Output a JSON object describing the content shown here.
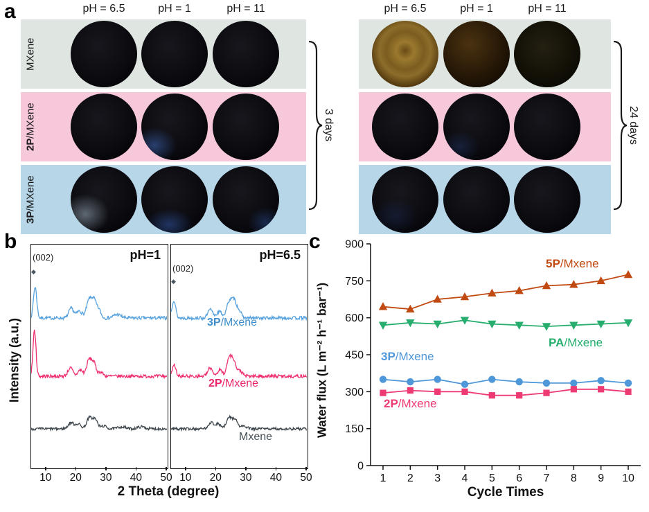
{
  "panels": {
    "a": "a",
    "b": "b",
    "c": "c"
  },
  "icons": {
    "diamond_marker": "◆"
  },
  "panel_a": {
    "column_headers": [
      "pH = 6.5",
      "pH = 1",
      "pH = 11"
    ],
    "rows": [
      {
        "label_bold": "",
        "label_rest": "MXene",
        "color": "#dfe6e2"
      },
      {
        "label_bold": "2P",
        "label_rest": "/MXene",
        "color": "#f6c8da"
      },
      {
        "label_bold": "3P",
        "label_rest": "/MXene",
        "color": "#b7d7e9"
      }
    ],
    "grids": [
      {
        "duration": "3 days",
        "cells": [
          [
            {
              "fill": "black"
            },
            {
              "fill": "black"
            },
            {
              "fill": "black"
            }
          ],
          [
            {
              "fill": "black"
            },
            {
              "fill": "black",
              "glare": "blue-bl"
            },
            {
              "fill": "black"
            }
          ],
          [
            {
              "fill": "black",
              "glare": "gray-bl"
            },
            {
              "fill": "black",
              "glare": "blue-b"
            },
            {
              "fill": "black",
              "glare": "blue-br"
            }
          ]
        ]
      },
      {
        "duration": "24 days",
        "cells": [
          [
            {
              "fill": "brown"
            },
            {
              "fill": "darkbrown"
            },
            {
              "fill": "nearblack-brown"
            }
          ],
          [
            {
              "fill": "black"
            },
            {
              "fill": "black",
              "glare": "blue-bl-faint"
            },
            {
              "fill": "black"
            }
          ],
          [
            {
              "fill": "black",
              "glare": "navy-faint"
            },
            {
              "fill": "black"
            },
            {
              "fill": "black"
            }
          ]
        ]
      }
    ]
  },
  "chart_data": [
    {
      "type": "line",
      "id": "xrd-patterns",
      "xlabel": "2 Theta (degree)",
      "ylabel": "Intensity (a.u.)",
      "xlim": [
        5,
        50
      ],
      "xticks": [
        10,
        20,
        30,
        40,
        50
      ],
      "peak_annotation": "(002)",
      "panels": [
        {
          "title": "pH=1",
          "series": [
            {
              "name": "3P/Mxene",
              "color": "#58a2de",
              "baseline": 106,
              "noise": 2.4,
              "peaks": [
                [
                  6.3,
                  45,
                  0.55
                ],
                [
                  18.3,
                  14,
                  0.8
                ],
                [
                  21.0,
                  10,
                  0.9
                ],
                [
                  24.3,
                  27,
                  0.9
                ],
                [
                  25.9,
                  22,
                  0.7
                ],
                [
                  27.4,
                  12,
                  0.7
                ],
                [
                  33.5,
                  5,
                  1.2
                ]
              ]
            },
            {
              "name": "2P/Mxene",
              "color": "#ee2f6e",
              "baseline": 190,
              "noise": 2.4,
              "peaks": [
                [
                  6.1,
                  66,
                  0.5
                ],
                [
                  18.0,
                  12,
                  0.8
                ],
                [
                  21.3,
                  9,
                  0.8
                ],
                [
                  24.2,
                  24,
                  0.8
                ],
                [
                  25.8,
                  18,
                  0.7
                ],
                [
                  28.0,
                  6,
                  0.8
                ]
              ]
            },
            {
              "name": "Mxene",
              "color": "#3d464c",
              "baseline": 266,
              "noise": 2.0,
              "peaks": [
                [
                  18.2,
                  9,
                  0.9
                ],
                [
                  20.6,
                  7,
                  0.9
                ],
                [
                  24.3,
                  16,
                  0.9
                ],
                [
                  26.2,
                  13,
                  0.8
                ],
                [
                  29.0,
                  4,
                  1.0
                ],
                [
                  35.0,
                  3,
                  1.2
                ],
                [
                  41.5,
                  3,
                  1.2
                ]
              ]
            }
          ]
        },
        {
          "title": "pH=6.5",
          "series": [
            {
              "name": "3P/Mxene",
              "color": "#58a2de",
              "baseline": 106,
              "noise": 2.4,
              "peaks": [
                [
                  5.9,
                  26,
                  0.6
                ],
                [
                  18.0,
                  12,
                  0.8
                ],
                [
                  21.0,
                  9,
                  0.9
                ],
                [
                  24.4,
                  25,
                  0.9
                ],
                [
                  26.0,
                  21,
                  0.7
                ],
                [
                  27.5,
                  11,
                  0.7
                ]
              ]
            },
            {
              "name": "2P/Mxene",
              "color": "#ee2f6e",
              "baseline": 190,
              "noise": 2.4,
              "peaks": [
                [
                  6.0,
                  16,
                  0.6
                ],
                [
                  18.0,
                  12,
                  0.8
                ],
                [
                  21.2,
                  9,
                  0.8
                ],
                [
                  24.3,
                  27,
                  0.8
                ],
                [
                  25.8,
                  20,
                  0.7
                ],
                [
                  27.8,
                  8,
                  0.8
                ]
              ]
            },
            {
              "name": "Mxene",
              "color": "#3d464c",
              "baseline": 266,
              "noise": 2.0,
              "peaks": [
                [
                  18.2,
                  9,
                  0.9
                ],
                [
                  20.6,
                  7,
                  0.9
                ],
                [
                  24.3,
                  16,
                  0.9
                ],
                [
                  26.2,
                  13,
                  0.8
                ],
                [
                  29.0,
                  4,
                  1.0
                ]
              ]
            }
          ]
        }
      ],
      "series_labels": [
        {
          "bold": "3P",
          "rest": "/Mxene",
          "color": "#3e8ecb"
        },
        {
          "bold": "2P",
          "rest": "/Mxene",
          "color": "#e9246b"
        },
        {
          "bold": "",
          "rest": "Mxene",
          "color": "#454f55"
        }
      ]
    },
    {
      "type": "line",
      "id": "water-flux-cycles",
      "xlabel": "Cycle Times",
      "ylabel": "Water flux (L m⁻² h⁻¹ bar⁻¹)",
      "x": [
        1,
        2,
        3,
        4,
        5,
        6,
        7,
        8,
        9,
        10
      ],
      "ylim": [
        0,
        900
      ],
      "yticks": [
        0,
        150,
        300,
        450,
        600,
        750,
        900
      ],
      "legend_position": "inline-labels",
      "series": [
        {
          "name": "5P/Mxene",
          "label_bold": "5P",
          "label_rest": "/Mxene",
          "marker": "triangle-up",
          "color": "#c14a12",
          "values": [
            645,
            635,
            675,
            685,
            700,
            710,
            730,
            735,
            750,
            775
          ]
        },
        {
          "name": "PA/Mxene",
          "label_bold": "PA",
          "label_rest": "/Mxene",
          "marker": "triangle-down",
          "color": "#27ae6e",
          "values": [
            570,
            580,
            575,
            590,
            575,
            570,
            565,
            570,
            575,
            580
          ]
        },
        {
          "name": "3P/Mxene",
          "label_bold": "3P",
          "label_rest": "/Mxene",
          "marker": "circle",
          "color": "#4e97d9",
          "values": [
            350,
            340,
            350,
            330,
            350,
            340,
            335,
            335,
            345,
            335
          ]
        },
        {
          "name": "2P/Mxene",
          "label_bold": "2P",
          "label_rest": "/Mxene",
          "marker": "square",
          "color": "#ee3a72",
          "values": [
            295,
            305,
            300,
            300,
            285,
            285,
            295,
            310,
            310,
            300
          ]
        }
      ]
    }
  ]
}
